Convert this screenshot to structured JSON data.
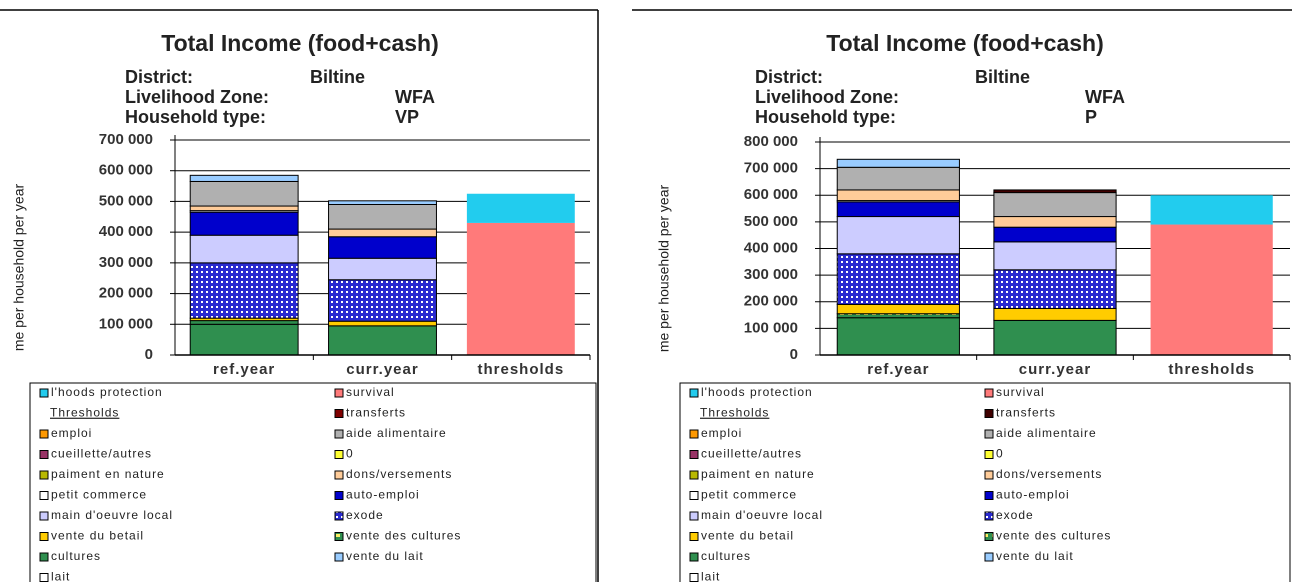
{
  "chart_data": [
    {
      "type": "stacked_bar",
      "title": "Total Income (food+cash)",
      "info": [
        {
          "label": "District:",
          "value": "Biltine"
        },
        {
          "label": "Livelihood Zone:",
          "value": "WFA"
        },
        {
          "label": "Household type:",
          "value": "VP"
        }
      ],
      "y_label": "me per household per year",
      "legend_heading": "Thresholds",
      "categories": [
        "ref.year",
        "curr.year",
        "thresholds"
      ],
      "ylim": [
        0,
        700000
      ],
      "yticks": [
        0,
        {
          "value": 100000,
          "label": "100 000"
        },
        {
          "value": 200000,
          "label": "200 000"
        },
        {
          "value": 300000,
          "label": "300 000"
        },
        {
          "value": 400000,
          "label": "400 000"
        },
        {
          "value": 500000,
          "label": "500 000"
        },
        {
          "value": 600000,
          "label": "600 000"
        },
        {
          "value": 700000,
          "label": "700 000"
        }
      ],
      "grid": true,
      "series": [
        {
          "name": "cultures",
          "color": "#2f8f4f",
          "values": [
            100000,
            95000,
            null
          ]
        },
        {
          "name": "vente des cultures",
          "color": "#2f8f4f",
          "pattern": "stripes",
          "values": [
            12000,
            null,
            null
          ]
        },
        {
          "name": "vente du betail",
          "color": "#ffcc00",
          "values": [
            8000,
            15000,
            null
          ]
        },
        {
          "name": "exode",
          "color": "#2a2ad0",
          "pattern": "dots",
          "values": [
            180000,
            135000,
            null
          ]
        },
        {
          "name": "main d'oeuvre local",
          "color": "#ccccff",
          "values": [
            90000,
            70000,
            null
          ]
        },
        {
          "name": "auto-emploi",
          "color": "#0000cc",
          "values": [
            75000,
            70000,
            null
          ]
        },
        {
          "name": "petit commerce",
          "color": "#ffffff",
          "values": [
            5000,
            null,
            null
          ]
        },
        {
          "name": "dons/versements",
          "color": "#ffcc99",
          "values": [
            15000,
            25000,
            null
          ]
        },
        {
          "name": "aide alimentaire",
          "color": "#b0b0b0",
          "values": [
            80000,
            80000,
            null
          ]
        },
        {
          "name": "vente du lait",
          "color": "#99ccff",
          "values": [
            20000,
            12000,
            null
          ]
        },
        {
          "name": "lait",
          "color": "#ffffff",
          "values": [
            null,
            null,
            null
          ]
        },
        {
          "name": "paiment en nature",
          "color": "#b8b800",
          "values": [
            null,
            null,
            null
          ]
        },
        {
          "name": "0",
          "color": "#ffff33",
          "values": [
            null,
            null,
            null
          ]
        },
        {
          "name": "cueillette/autres",
          "color": "#993366",
          "values": [
            null,
            null,
            null
          ]
        },
        {
          "name": "emploi",
          "color": "#ff9900",
          "values": [
            null,
            null,
            null
          ]
        },
        {
          "name": "transferts",
          "color": "#800000",
          "values": [
            null,
            null,
            null
          ]
        },
        {
          "name": "survival",
          "color": "#ff7a7a",
          "values": [
            null,
            null,
            430000
          ]
        },
        {
          "name": "l'hoods protection",
          "color": "#22ccee",
          "values": [
            null,
            null,
            95000
          ]
        }
      ]
    },
    {
      "type": "stacked_bar",
      "title": "Total Income (food+cash)",
      "info": [
        {
          "label": "District:",
          "value": "Biltine"
        },
        {
          "label": "Livelihood Zone:",
          "value": "WFA"
        },
        {
          "label": "Household type:",
          "value": "P"
        }
      ],
      "y_label": "me per household per year",
      "legend_heading": "Thresholds",
      "categories": [
        "ref.year",
        "curr.year",
        "thresholds"
      ],
      "ylim": [
        0,
        800000
      ],
      "yticks": [
        0,
        {
          "value": 100000,
          "label": "100 000"
        },
        {
          "value": 200000,
          "label": "200 000"
        },
        {
          "value": 300000,
          "label": "300 000"
        },
        {
          "value": 400000,
          "label": "400 000"
        },
        {
          "value": 500000,
          "label": "500 000"
        },
        {
          "value": 600000,
          "label": "600 000"
        },
        {
          "value": 700000,
          "label": "700 000"
        },
        {
          "value": 800000,
          "label": "800 000"
        }
      ],
      "grid": true,
      "series": [
        {
          "name": "cultures",
          "color": "#2f8f4f",
          "values": [
            140000,
            130000,
            null
          ]
        },
        {
          "name": "vente des cultures",
          "color": "#2f8f4f",
          "pattern": "stripes",
          "values": [
            15000,
            null,
            null
          ]
        },
        {
          "name": "vente du betail",
          "color": "#ffcc00",
          "values": [
            35000,
            45000,
            null
          ]
        },
        {
          "name": "exode",
          "color": "#2a2ad0",
          "pattern": "dots",
          "values": [
            190000,
            145000,
            null
          ]
        },
        {
          "name": "main d'oeuvre local",
          "color": "#ccccff",
          "values": [
            140000,
            105000,
            null
          ]
        },
        {
          "name": "auto-emploi",
          "color": "#0000cc",
          "values": [
            55000,
            55000,
            null
          ]
        },
        {
          "name": "petit commerce",
          "color": "#ffffff",
          "values": [
            5000,
            null,
            null
          ]
        },
        {
          "name": "dons/versements",
          "color": "#ffcc99",
          "values": [
            40000,
            40000,
            null
          ]
        },
        {
          "name": "aide alimentaire",
          "color": "#b0b0b0",
          "values": [
            85000,
            90000,
            null
          ]
        },
        {
          "name": "vente du lait",
          "color": "#99ccff",
          "values": [
            30000,
            null,
            null
          ]
        },
        {
          "name": "lait",
          "color": "#ffffff",
          "values": [
            null,
            null,
            null
          ]
        },
        {
          "name": "paiment en nature",
          "color": "#b8b800",
          "values": [
            null,
            null,
            null
          ]
        },
        {
          "name": "0",
          "color": "#ffff33",
          "values": [
            null,
            null,
            null
          ]
        },
        {
          "name": "cueillette/autres",
          "color": "#993366",
          "values": [
            null,
            null,
            null
          ]
        },
        {
          "name": "emploi",
          "color": "#ff9900",
          "values": [
            null,
            null,
            null
          ]
        },
        {
          "name": "transferts",
          "color": "#400000",
          "values": [
            null,
            10000,
            null
          ]
        },
        {
          "name": "survival",
          "color": "#ff7a7a",
          "values": [
            null,
            null,
            490000
          ]
        },
        {
          "name": "l'hoods protection",
          "color": "#22ccee",
          "values": [
            null,
            null,
            110000
          ]
        }
      ]
    }
  ]
}
